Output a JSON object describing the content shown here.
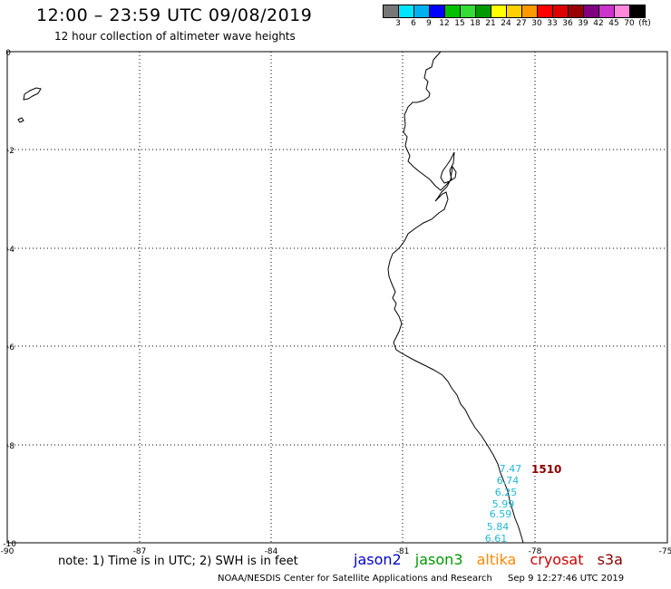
{
  "header": {
    "title": "12:00 – 23:59 UTC 09/08/2019",
    "subtitle": "12 hour collection of altimeter wave heights"
  },
  "legend": {
    "colors": [
      "#777777",
      "#00e5ff",
      "#00b0f0",
      "#0000ff",
      "#00c000",
      "#33dd33",
      "#009900",
      "#ffff00",
      "#ffd000",
      "#ff9900",
      "#ff0000",
      "#dd0000",
      "#990000",
      "#800080",
      "#cc33cc",
      "#ff88dd",
      "#000000"
    ],
    "labels": [
      "3",
      "6",
      "9",
      "12",
      "15",
      "18",
      "21",
      "24",
      "27",
      "30",
      "33",
      "36",
      "39",
      "42",
      "45",
      "70",
      "(ft)"
    ]
  },
  "map": {
    "x_ticks": [
      "-90",
      "-87",
      "-84",
      "-81",
      "-78",
      "-75"
    ],
    "y_ticks": [
      "0",
      "-2",
      "-4",
      "-6",
      "-8",
      "-10"
    ],
    "grid": "dotted",
    "extent": {
      "lon": [
        -90,
        -75
      ],
      "lat": [
        -10,
        0
      ]
    }
  },
  "observations": {
    "swh_labels": [
      "7.47",
      "6.74",
      "6.25",
      "5.99",
      "6.59",
      "5.84",
      "6.61"
    ],
    "color": "#20b8d8",
    "pass_id": "1510",
    "pass_id_color": "#8b0000"
  },
  "note": "note: 1) Time is in UTC; 2) SWH is in feet",
  "satellites": [
    {
      "name": "jason2",
      "color": "#0000cc"
    },
    {
      "name": "jason3",
      "color": "#009900"
    },
    {
      "name": "altika",
      "color": "#ff8800"
    },
    {
      "name": "cryosat",
      "color": "#cc0000"
    },
    {
      "name": "s3a",
      "color": "#880000"
    }
  ],
  "footer": {
    "credit": "NOAA/NESDIS Center for Satellite Applications and Research",
    "timestamp": "Sep  9 12:27:46 UTC 2019"
  }
}
